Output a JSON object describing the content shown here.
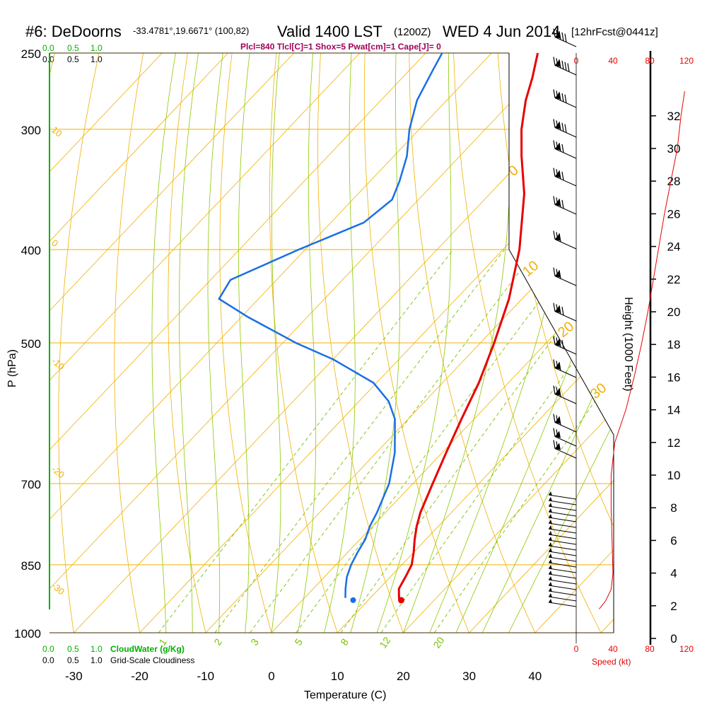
{
  "header": {
    "station": "#6: DeDoorns",
    "coords": "-33.4781°,19.6671° (100,82)",
    "valid": "Valid 1400 LST",
    "utc": "(1200Z)",
    "date": "WED 4 Jun 2014",
    "forecast": "[12hrFcst@0441z]",
    "indices": "Plcl=840 Tlcl[C]=1 Shox=5 Pwat[cm]=1 Cape[J]= 0"
  },
  "labels": {
    "cloud_top_scale": [
      "0.0",
      "0.5",
      "1.0"
    ],
    "cloudiness_top_scale": [
      "0.0",
      "0.5",
      "1.0"
    ],
    "cloudwater": "CloudWater (g/Kg)",
    "cloudiness": "Grid-Scale Cloudiness",
    "x_axis": "Temperature (C)",
    "y_axis": "P (hPa)",
    "height_axis": "Height (1000 Feet)",
    "speed": "Speed (kt)"
  },
  "colors": {
    "temperature": "#e80000",
    "dewpoint": "#1a6ee8",
    "isotherm": "#f0b000",
    "dry_adiabat": "#f0b000",
    "moist_adiabat": "#8cc800",
    "mixing_ratio": "#78c000",
    "cloud_axis": "#00b000",
    "speed": "#e80000",
    "indices": "#a0005a"
  },
  "chart_data": {
    "type": "skew-t",
    "pressure_ticks": [
      250,
      300,
      400,
      500,
      700,
      850,
      1000
    ],
    "temperature_ticks": [
      -30,
      -20,
      -10,
      0,
      10,
      20,
      30,
      40
    ],
    "height_ticks": [
      0,
      2,
      4,
      6,
      8,
      10,
      12,
      14,
      16,
      18,
      20,
      22,
      24,
      26,
      28,
      30,
      32
    ],
    "speed_ticks": [
      0,
      40,
      80,
      120
    ],
    "dry_adiabat_labels": [
      "10",
      "0",
      "-10",
      "-20",
      "-30"
    ],
    "moist_adiabat_labels": [
      "0",
      "10",
      "20",
      "30"
    ],
    "mixing_ratio_labels": [
      "1",
      "2",
      "3",
      "5",
      "8",
      "12",
      "20"
    ],
    "temperature_profile": [
      {
        "p": 925,
        "t": 14.7
      },
      {
        "p": 915,
        "t": 14.0
      },
      {
        "p": 900,
        "t": 13.0
      },
      {
        "p": 875,
        "t": 12.3
      },
      {
        "p": 850,
        "t": 11.5
      },
      {
        "p": 825,
        "t": 10.0
      },
      {
        "p": 800,
        "t": 8.3
      },
      {
        "p": 775,
        "t": 6.7
      },
      {
        "p": 750,
        "t": 5.3
      },
      {
        "p": 700,
        "t": 3.0
      },
      {
        "p": 650,
        "t": 0.6
      },
      {
        "p": 600,
        "t": -1.9
      },
      {
        "p": 550,
        "t": -4.5
      },
      {
        "p": 500,
        "t": -7.9
      },
      {
        "p": 450,
        "t": -12.0
      },
      {
        "p": 400,
        "t": -17.5
      },
      {
        "p": 350,
        "t": -24.8
      },
      {
        "p": 320,
        "t": -30.6
      },
      {
        "p": 300,
        "t": -34.5
      },
      {
        "p": 280,
        "t": -38.0
      },
      {
        "p": 265,
        "t": -40.3
      },
      {
        "p": 250,
        "t": -43.0
      }
    ],
    "dewpoint_profile": [
      {
        "p": 920,
        "t": 6.2
      },
      {
        "p": 900,
        "t": 4.9
      },
      {
        "p": 875,
        "t": 3.4
      },
      {
        "p": 850,
        "t": 2.3
      },
      {
        "p": 825,
        "t": 1.5
      },
      {
        "p": 800,
        "t": 0.8
      },
      {
        "p": 775,
        "t": -0.4
      },
      {
        "p": 750,
        "t": -1.3
      },
      {
        "p": 700,
        "t": -3.6
      },
      {
        "p": 650,
        "t": -7.2
      },
      {
        "p": 600,
        "t": -12.0
      },
      {
        "p": 575,
        "t": -15.5
      },
      {
        "p": 550,
        "t": -20.5
      },
      {
        "p": 520,
        "t": -30.0
      },
      {
        "p": 500,
        "t": -38.0
      },
      {
        "p": 470,
        "t": -49.0
      },
      {
        "p": 450,
        "t": -56.0
      },
      {
        "p": 430,
        "t": -57.0
      },
      {
        "p": 400,
        "t": -51.0
      },
      {
        "p": 375,
        "t": -45.0
      },
      {
        "p": 355,
        "t": -44.0
      },
      {
        "p": 340,
        "t": -45.5
      },
      {
        "p": 320,
        "t": -48.0
      },
      {
        "p": 300,
        "t": -51.5
      },
      {
        "p": 280,
        "t": -54.5
      },
      {
        "p": 260,
        "t": -56.5
      },
      {
        "p": 250,
        "t": -57.5
      }
    ],
    "surface_temperature": 15.0,
    "surface_dewpoint": 7.7,
    "surface_pressure": 925,
    "wind_speed_profile": [
      {
        "h": 1.8,
        "kt": 25
      },
      {
        "h": 2.3,
        "kt": 32
      },
      {
        "h": 3.0,
        "kt": 38
      },
      {
        "h": 4.0,
        "kt": 40
      },
      {
        "h": 6.0,
        "kt": 39
      },
      {
        "h": 8.0,
        "kt": 38
      },
      {
        "h": 10.0,
        "kt": 38
      },
      {
        "h": 12.0,
        "kt": 42
      },
      {
        "h": 14.0,
        "kt": 54
      },
      {
        "h": 16.0,
        "kt": 63
      },
      {
        "h": 18.0,
        "kt": 71
      },
      {
        "h": 20.0,
        "kt": 78
      },
      {
        "h": 22.0,
        "kt": 84
      },
      {
        "h": 24.0,
        "kt": 90
      },
      {
        "h": 26.0,
        "kt": 96
      },
      {
        "h": 28.0,
        "kt": 103
      },
      {
        "h": 30.0,
        "kt": 110
      },
      {
        "h": 32.0,
        "kt": 114
      },
      {
        "h": 33.5,
        "kt": 118
      }
    ]
  }
}
